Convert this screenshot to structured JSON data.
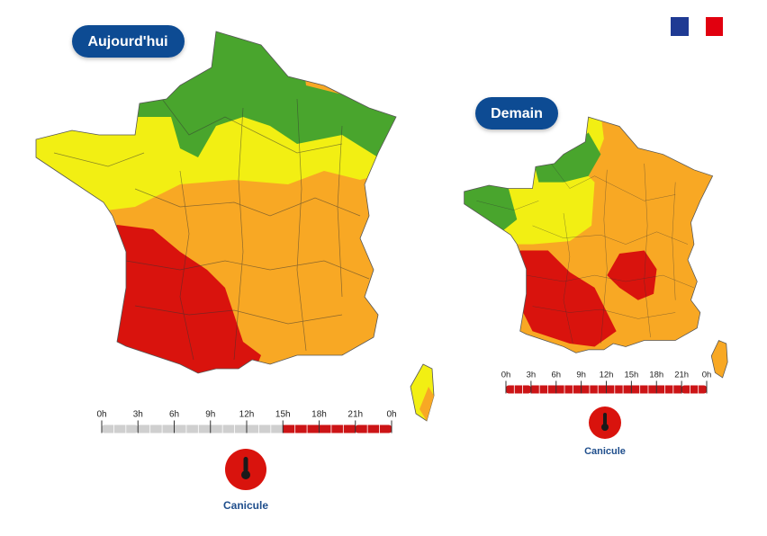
{
  "panels": [
    {
      "title": "Aujourd'hui",
      "hours": [
        "0h",
        "3h",
        "6h",
        "9h",
        "12h",
        "15h",
        "18h",
        "21h",
        "0h"
      ],
      "hazard": "Canicule"
    },
    {
      "title": "Demain",
      "hours": [
        "0h",
        "3h",
        "6h",
        "9h",
        "12h",
        "15h",
        "18h",
        "21h",
        "0h"
      ],
      "hazard": "Canicule"
    }
  ]
}
